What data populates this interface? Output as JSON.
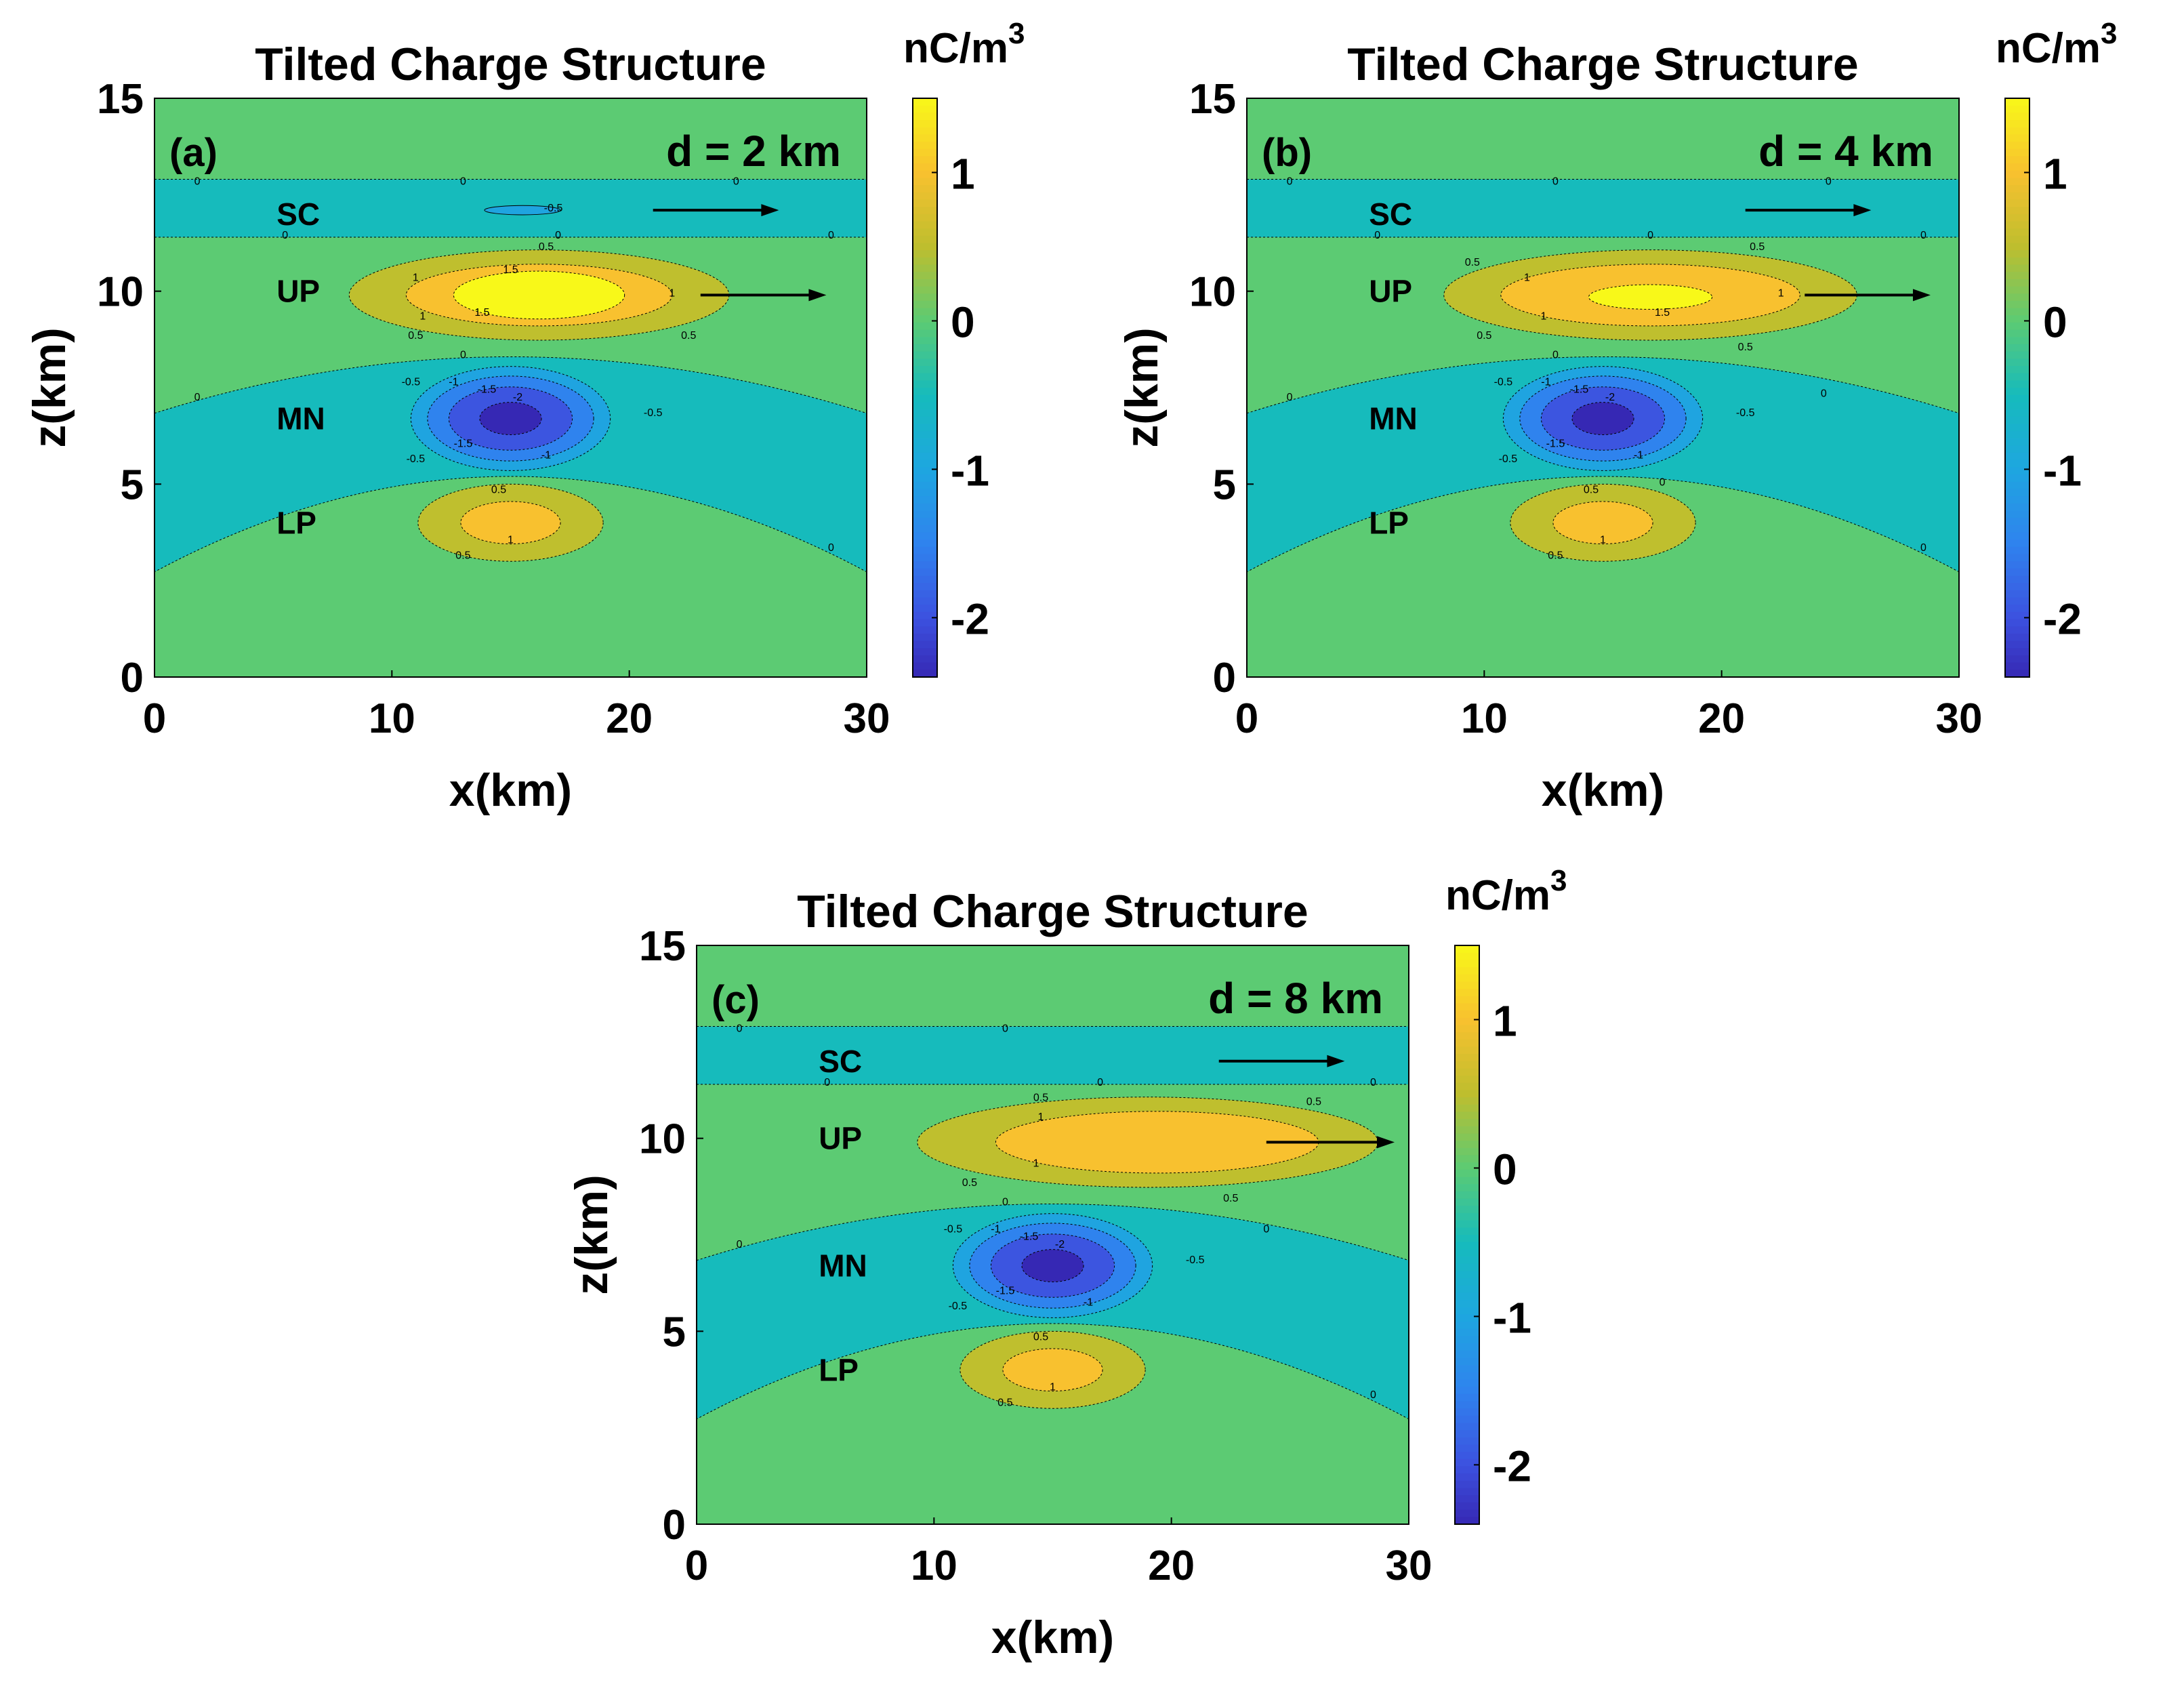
{
  "colors": {
    "background_green": "#5ccb73",
    "negative_band": "#16bbbc",
    "neg_0_5": "#1fa4e0",
    "neg_1": "#2f83ee",
    "neg_1_5": "#3c55e0",
    "neg_2": "#3628b4",
    "pos_0_5": "#bfbf2e",
    "pos_1": "#f8c12f",
    "pos_1_5": "#f8f819",
    "arrow": "#000000"
  },
  "chart_data": [
    {
      "type": "contour",
      "panel_label": "(a)",
      "title": "Tilted Charge Structure",
      "annotation": "d = 2 km",
      "xlabel": "x(km)",
      "ylabel": "z(km)",
      "xlim": [
        0,
        30
      ],
      "ylim": [
        0,
        15
      ],
      "xticks": [
        "0",
        "10",
        "20",
        "30"
      ],
      "yticks": [
        "0",
        "5",
        "10",
        "15"
      ],
      "colorbar": {
        "label": "nC/m",
        "label_sup": "3",
        "range": [
          -2.4,
          1.5
        ],
        "ticks": [
          "1",
          "0",
          "-1",
          "-2"
        ],
        "tick_values": [
          1,
          0,
          -1,
          -2
        ]
      },
      "region_labels": [
        {
          "text": "SC",
          "x": 6,
          "z": 12
        },
        {
          "text": "UP",
          "x": 6,
          "z": 10
        },
        {
          "text": "MN",
          "x": 6,
          "z": 6.7
        },
        {
          "text": "LP",
          "x": 6,
          "z": 4
        }
      ],
      "arrows": [
        {
          "from": [
            21,
            12.1
          ],
          "to": [
            26.3,
            12.1
          ]
        },
        {
          "from": [
            23,
            9.9
          ],
          "to": [
            28.3,
            9.9
          ]
        }
      ],
      "charge_layers": {
        "SC": {
          "x_center": 15.5,
          "z_center": 12.1,
          "peak": -0.6
        },
        "UP": {
          "x_center": 16.2,
          "z_center": 9.9,
          "peak": 1.7
        },
        "MN": {
          "x_center": 15,
          "z_center": 6.7,
          "peak": -2.3
        },
        "LP": {
          "x_center": 15,
          "z_center": 4,
          "peak": 1.1
        }
      },
      "contour_labels": [
        {
          "text": "0",
          "x": 1.8,
          "z": 12.8
        },
        {
          "text": "0",
          "x": 13,
          "z": 12.8
        },
        {
          "text": "0",
          "x": 24.5,
          "z": 12.8
        },
        {
          "text": "0",
          "x": 5.5,
          "z": 11.4
        },
        {
          "text": "0",
          "x": 28.5,
          "z": 11.4
        },
        {
          "text": "-0.5",
          "x": 16.8,
          "z": 12.1
        },
        {
          "text": "0",
          "x": 17,
          "z": 11.4
        },
        {
          "text": "0.5",
          "x": 16.5,
          "z": 11.1
        },
        {
          "text": "1.5",
          "x": 15,
          "z": 10.5
        },
        {
          "text": "1.5",
          "x": 13.8,
          "z": 9.4
        },
        {
          "text": "1",
          "x": 11,
          "z": 10.3
        },
        {
          "text": "1",
          "x": 11.3,
          "z": 9.3
        },
        {
          "text": "0.5",
          "x": 11,
          "z": 8.8
        },
        {
          "text": "0.5",
          "x": 22.5,
          "z": 8.8
        },
        {
          "text": "1",
          "x": 21.8,
          "z": 9.9
        },
        {
          "text": "0",
          "x": 13,
          "z": 8.3
        },
        {
          "text": "-0.5",
          "x": 10.8,
          "z": 7.6
        },
        {
          "text": "-1",
          "x": 12.6,
          "z": 7.6
        },
        {
          "text": "-1.5",
          "x": 14,
          "z": 7.4
        },
        {
          "text": "-2",
          "x": 15.3,
          "z": 7.2
        },
        {
          "text": "-0.5",
          "x": 21,
          "z": 6.8
        },
        {
          "text": "-1.5",
          "x": 13,
          "z": 6
        },
        {
          "text": "-1",
          "x": 16.5,
          "z": 5.7
        },
        {
          "text": "-0.5",
          "x": 11,
          "z": 5.6
        },
        {
          "text": "0",
          "x": 1.8,
          "z": 7.2
        },
        {
          "text": "0.5",
          "x": 14.5,
          "z": 4.8
        },
        {
          "text": "1",
          "x": 15,
          "z": 3.5
        },
        {
          "text": "0.5",
          "x": 13,
          "z": 3.1
        },
        {
          "text": "0",
          "x": 28.5,
          "z": 3.3
        }
      ]
    },
    {
      "type": "contour",
      "panel_label": "(b)",
      "title": "Tilted Charge Structure",
      "annotation": "d = 4 km",
      "xlabel": "x(km)",
      "ylabel": "z(km)",
      "xlim": [
        0,
        30
      ],
      "ylim": [
        0,
        15
      ],
      "xticks": [
        "0",
        "10",
        "20",
        "30"
      ],
      "yticks": [
        "0",
        "5",
        "10",
        "15"
      ],
      "colorbar": {
        "label": "nC/m",
        "label_sup": "3",
        "range": [
          -2.4,
          1.5
        ],
        "ticks": [
          "1",
          "0",
          "-1",
          "-2"
        ],
        "tick_values": [
          1,
          0,
          -1,
          -2
        ]
      },
      "region_labels": [
        {
          "text": "SC",
          "x": 6,
          "z": 12
        },
        {
          "text": "UP",
          "x": 6,
          "z": 10
        },
        {
          "text": "MN",
          "x": 6,
          "z": 6.7
        },
        {
          "text": "LP",
          "x": 6,
          "z": 4
        }
      ],
      "arrows": [
        {
          "from": [
            21,
            12.1
          ],
          "to": [
            26.3,
            12.1
          ]
        },
        {
          "from": [
            23.5,
            9.9
          ],
          "to": [
            28.8,
            9.9
          ]
        }
      ],
      "charge_layers": {
        "SC": {
          "x_center": 16.5,
          "z_center": 12.1,
          "peak": -0.4
        },
        "UP": {
          "x_center": 17,
          "z_center": 9.9,
          "peak": 1.55
        },
        "MN": {
          "x_center": 15,
          "z_center": 6.7,
          "peak": -2.3
        },
        "LP": {
          "x_center": 15,
          "z_center": 4,
          "peak": 1.1
        }
      },
      "contour_labels": [
        {
          "text": "0",
          "x": 1.8,
          "z": 12.8
        },
        {
          "text": "0",
          "x": 13,
          "z": 12.8
        },
        {
          "text": "0",
          "x": 24.5,
          "z": 12.8
        },
        {
          "text": "0",
          "x": 5.5,
          "z": 11.4
        },
        {
          "text": "0",
          "x": 28.5,
          "z": 11.4
        },
        {
          "text": "0",
          "x": 17,
          "z": 11.4
        },
        {
          "text": "0.5",
          "x": 21.5,
          "z": 11.1
        },
        {
          "text": "0.5",
          "x": 9.5,
          "z": 10.7
        },
        {
          "text": "1",
          "x": 11.8,
          "z": 10.3
        },
        {
          "text": "1",
          "x": 12.5,
          "z": 9.3
        },
        {
          "text": "1.5",
          "x": 17.5,
          "z": 9.4
        },
        {
          "text": "1",
          "x": 22.5,
          "z": 9.9
        },
        {
          "text": "0.5",
          "x": 10,
          "z": 8.8
        },
        {
          "text": "0.5",
          "x": 21,
          "z": 8.5
        },
        {
          "text": "0",
          "x": 13,
          "z": 8.3
        },
        {
          "text": "-0.5",
          "x": 10.8,
          "z": 7.6
        },
        {
          "text": "-1",
          "x": 12.6,
          "z": 7.6
        },
        {
          "text": "-1.5",
          "x": 14,
          "z": 7.4
        },
        {
          "text": "-2",
          "x": 15.3,
          "z": 7.2
        },
        {
          "text": "-0.5",
          "x": 21,
          "z": 6.8
        },
        {
          "text": "-1.5",
          "x": 13,
          "z": 6
        },
        {
          "text": "-1",
          "x": 16.5,
          "z": 5.7
        },
        {
          "text": "-0.5",
          "x": 11,
          "z": 5.6
        },
        {
          "text": "0",
          "x": 1.8,
          "z": 7.2
        },
        {
          "text": "0",
          "x": 24.3,
          "z": 7.3
        },
        {
          "text": "0.5",
          "x": 14.5,
          "z": 4.8
        },
        {
          "text": "0",
          "x": 17.5,
          "z": 5
        },
        {
          "text": "1",
          "x": 15,
          "z": 3.5
        },
        {
          "text": "0.5",
          "x": 13,
          "z": 3.1
        },
        {
          "text": "0",
          "x": 28.5,
          "z": 3.3
        }
      ]
    },
    {
      "type": "contour",
      "panel_label": "(c)",
      "title": "Tilted Charge Structure",
      "annotation": "d = 8 km",
      "xlabel": "x(km)",
      "ylabel": "z(km)",
      "xlim": [
        0,
        30
      ],
      "ylim": [
        0,
        15
      ],
      "xticks": [
        "0",
        "10",
        "20",
        "30"
      ],
      "yticks": [
        "0",
        "5",
        "10",
        "15"
      ],
      "colorbar": {
        "label": "nC/m",
        "label_sup": "3",
        "range": [
          -2.4,
          1.5
        ],
        "ticks": [
          "1",
          "0",
          "-1",
          "-2"
        ],
        "tick_values": [
          1,
          0,
          -1,
          -2
        ]
      },
      "region_labels": [
        {
          "text": "SC",
          "x": 6,
          "z": 12
        },
        {
          "text": "UP",
          "x": 6,
          "z": 10
        },
        {
          "text": "MN",
          "x": 6,
          "z": 6.7
        },
        {
          "text": "LP",
          "x": 6,
          "z": 4
        }
      ],
      "arrows": [
        {
          "from": [
            22,
            12
          ],
          "to": [
            27.3,
            12
          ]
        },
        {
          "from": [
            24,
            9.9
          ],
          "to": [
            29.4,
            9.9
          ]
        }
      ],
      "charge_layers": {
        "SC": {
          "x_center": 18,
          "z_center": 12.1,
          "peak": -0.3
        },
        "UP": {
          "x_center": 19,
          "z_center": 9.9,
          "peak": 1.3
        },
        "MN": {
          "x_center": 15,
          "z_center": 6.7,
          "peak": -2.3
        },
        "LP": {
          "x_center": 15,
          "z_center": 4,
          "peak": 1.1
        }
      },
      "contour_labels": [
        {
          "text": "0",
          "x": 1.8,
          "z": 12.8
        },
        {
          "text": "0",
          "x": 13,
          "z": 12.8
        },
        {
          "text": "0",
          "x": 5.5,
          "z": 11.4
        },
        {
          "text": "0",
          "x": 17,
          "z": 11.4
        },
        {
          "text": "0",
          "x": 28.5,
          "z": 11.4
        },
        {
          "text": "0.5",
          "x": 14.5,
          "z": 11
        },
        {
          "text": "0.5",
          "x": 26,
          "z": 10.9
        },
        {
          "text": "1",
          "x": 14.5,
          "z": 10.5
        },
        {
          "text": "1",
          "x": 14.3,
          "z": 9.3
        },
        {
          "text": "0.5",
          "x": 11.5,
          "z": 8.8
        },
        {
          "text": "0.5",
          "x": 22.5,
          "z": 8.4
        },
        {
          "text": "0",
          "x": 13,
          "z": 8.3
        },
        {
          "text": "0",
          "x": 24,
          "z": 7.6
        },
        {
          "text": "-0.5",
          "x": 10.8,
          "z": 7.6
        },
        {
          "text": "-1",
          "x": 12.6,
          "z": 7.6
        },
        {
          "text": "-1.5",
          "x": 14,
          "z": 7.4
        },
        {
          "text": "-2",
          "x": 15.3,
          "z": 7.2
        },
        {
          "text": "-0.5",
          "x": 21,
          "z": 6.8
        },
        {
          "text": "-1.5",
          "x": 13,
          "z": 6
        },
        {
          "text": "-1",
          "x": 16.5,
          "z": 5.7
        },
        {
          "text": "-0.5",
          "x": 11,
          "z": 5.6
        },
        {
          "text": "0",
          "x": 1.8,
          "z": 7.2
        },
        {
          "text": "0.5",
          "x": 14.5,
          "z": 4.8
        },
        {
          "text": "1",
          "x": 15,
          "z": 3.5
        },
        {
          "text": "0.5",
          "x": 13,
          "z": 3.1
        },
        {
          "text": "0",
          "x": 28.5,
          "z": 3.3
        }
      ]
    }
  ]
}
